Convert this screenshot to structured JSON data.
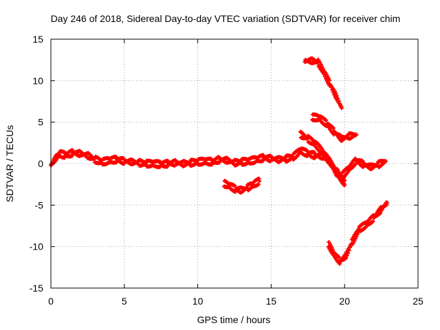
{
  "chart_data": {
    "type": "scatter",
    "title": "Day 246 of 2018, Sidereal Day-to-day VTEC variation (SDTVAR) for receiver chim",
    "xlabel": "GPS time / hours",
    "ylabel": "SDTVAR / TECUs",
    "xlim": [
      0,
      25
    ],
    "ylim": [
      -15,
      15
    ],
    "xticks": [
      0,
      5,
      10,
      15,
      20,
      25
    ],
    "yticks": [
      -15,
      -10,
      -5,
      0,
      5,
      10,
      15
    ],
    "xtick_labels": [
      "0",
      "5",
      "10",
      "15",
      "20",
      "25"
    ],
    "ytick_labels": [
      "-15",
      "-10",
      "-5",
      "0",
      "5",
      "10",
      "15"
    ],
    "grid": true,
    "marker": "+",
    "color": "#ff0000",
    "series": [
      {
        "name": "main-track",
        "x": [
          0.0,
          0.3,
          0.6,
          1.0,
          1.5,
          2.0,
          2.5,
          3.0,
          3.5,
          4.0,
          4.5,
          5.0,
          5.5,
          6.0,
          6.5,
          7.0,
          7.5,
          8.0,
          8.5,
          9.0,
          9.5,
          10.0,
          10.5,
          11.0,
          11.5,
          12.0,
          12.5,
          13.0,
          13.5,
          14.0,
          14.5,
          15.0,
          15.5,
          16.0,
          16.5,
          17.0,
          17.5,
          18.0,
          18.5,
          19.0,
          19.5,
          20.0
        ],
        "y": [
          -0.2,
          0.6,
          1.2,
          1.0,
          1.3,
          1.2,
          1.0,
          0.5,
          0.2,
          0.4,
          0.5,
          0.3,
          0.2,
          0.1,
          0.0,
          0.0,
          -0.1,
          0.0,
          0.1,
          0.0,
          0.1,
          0.2,
          0.3,
          0.2,
          0.5,
          0.4,
          0.1,
          0.2,
          0.3,
          0.5,
          0.7,
          0.6,
          0.5,
          0.6,
          0.8,
          1.6,
          1.2,
          1.0,
          0.9,
          0.2,
          -1.0,
          -2.6
        ]
      },
      {
        "name": "dip-12h",
        "x": [
          11.8,
          12.2,
          12.6,
          13.0,
          13.4,
          13.8,
          14.2
        ],
        "y": [
          -2.4,
          -2.7,
          -3.1,
          -3.2,
          -2.9,
          -2.5,
          -2.1
        ]
      },
      {
        "name": "high-18h",
        "x": [
          17.3,
          17.8,
          18.2,
          18.6,
          19.0,
          19.4,
          19.8
        ],
        "y": [
          12.4,
          12.4,
          12.2,
          11.0,
          9.6,
          8.2,
          6.7
        ]
      },
      {
        "name": "mid-18h",
        "x": [
          17.8,
          18.3,
          18.8,
          19.3,
          19.8,
          20.3,
          20.8
        ],
        "y": [
          5.6,
          5.5,
          4.8,
          3.8,
          3.0,
          3.3,
          3.5
        ]
      },
      {
        "name": "cross-18h",
        "x": [
          17.0,
          17.5,
          18.0,
          18.5,
          19.0,
          19.5,
          20.0
        ],
        "y": [
          3.5,
          3.0,
          2.4,
          1.4,
          0.2,
          -1.3,
          -2.0
        ]
      },
      {
        "name": "tail-20h",
        "x": [
          19.8,
          20.3,
          20.8,
          21.3,
          21.8,
          22.3,
          22.8
        ],
        "y": [
          -1.5,
          -0.6,
          0.4,
          -0.1,
          -0.4,
          -0.1,
          0.3
        ]
      },
      {
        "name": "low-19h",
        "x": [
          18.9,
          19.3,
          19.7,
          20.1,
          20.5,
          21.0,
          21.5,
          22.0,
          22.5,
          22.9
        ],
        "y": [
          -9.7,
          -11.0,
          -11.8,
          -11.1,
          -9.5,
          -7.9,
          -7.3,
          -6.5,
          -5.5,
          -4.7
        ]
      }
    ]
  }
}
